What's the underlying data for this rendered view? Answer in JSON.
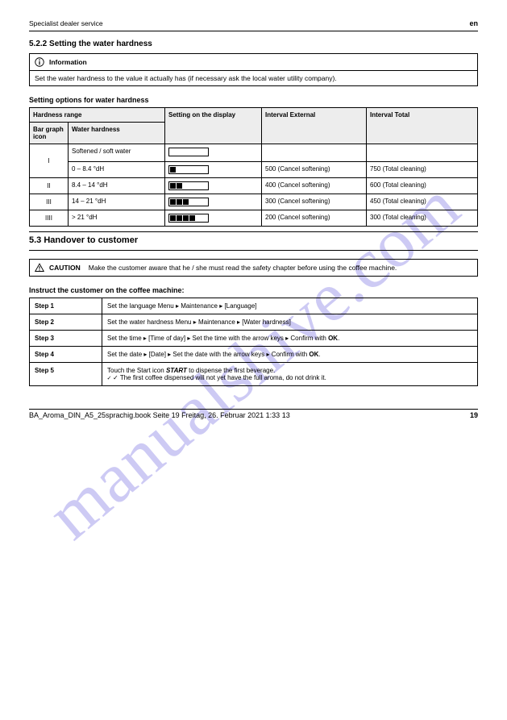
{
  "header": {
    "left": "Specialist dealer service",
    "right": "en"
  },
  "section1": {
    "heading": "5.2.2 Setting the water hardness",
    "info_title": "Information",
    "info_body": "Set the water hardness to the value it actually has (if necessary ask the local water utility company).",
    "sub": "Setting options for water hardness",
    "table": {
      "head": {
        "hardness_span": "Hardness range",
        "hardness_sub1": "Bar graph icon",
        "hardness_sub2": "Water hardness",
        "setting": "Setting on the display",
        "interval": "Interval External",
        "total": "Interval Total"
      },
      "rows": [
        {
          "icon": "I",
          "hard": "Softened / soft water",
          "lvl": 0,
          "ext": "",
          "tot": ""
        },
        {
          "icon": "I",
          "hard": "0 – 8.4 °dH",
          "lvl": 1,
          "ext": "500 (Cancel softening)",
          "tot": "750 (Total cleaning)"
        },
        {
          "icon": "II",
          "hard": "8.4 – 14 °dH",
          "lvl": 2,
          "ext": "400 (Cancel softening)",
          "tot": "600 (Total cleaning)"
        },
        {
          "icon": "III",
          "hard": "14 – 21 °dH",
          "lvl": 3,
          "ext": "300 (Cancel softening)",
          "tot": "450 (Total cleaning)"
        },
        {
          "icon": "IIII",
          "hard": "> 21 °dH",
          "lvl": 4,
          "ext": "200 (Cancel softening)",
          "tot": "300 (Total cleaning)"
        }
      ]
    }
  },
  "divider": "5.3 Handover to customer",
  "warn": {
    "title": "CAUTION",
    "body": "Make the customer aware that he / she must read the safety chapter before using the coffee machine."
  },
  "steps_head": "Instruct the customer on the coffee machine:",
  "steps": [
    {
      "n": "Step 1",
      "t": "Set the language ",
      "t2": "Menu ▸ Maintenance ▸ [Language]"
    },
    {
      "n": "Step 2",
      "t": "Set the water hardness ",
      "t2": "Menu ▸ Maintenance ▸ [Water hardness]"
    },
    {
      "n": "Step 3",
      "t": "Set the time ",
      "t2": "▸ [Time of day] ▸ Set the time with the arrow keys ▸ Confirm with "
    },
    {
      "n": "Step 4",
      "t": "Set the date ",
      "t2": "▸ [Date] ▸ Set the date with the arrow keys ▸ Confirm with "
    },
    {
      "n": "Step 5",
      "t": "Touch the Start icon ",
      "t2": " to dispense the first beverage.",
      "t3": "✓ The first coffee dispensed will not yet have the full aroma, do not drink it."
    }
  ],
  "ok": "OK",
  "start": "START",
  "footer": {
    "l": "BA_Aroma_DIN_A5_25sprachig.book  Seite 19  Freitag, 26. Februar 2021  1:33 13",
    "r": "19"
  }
}
